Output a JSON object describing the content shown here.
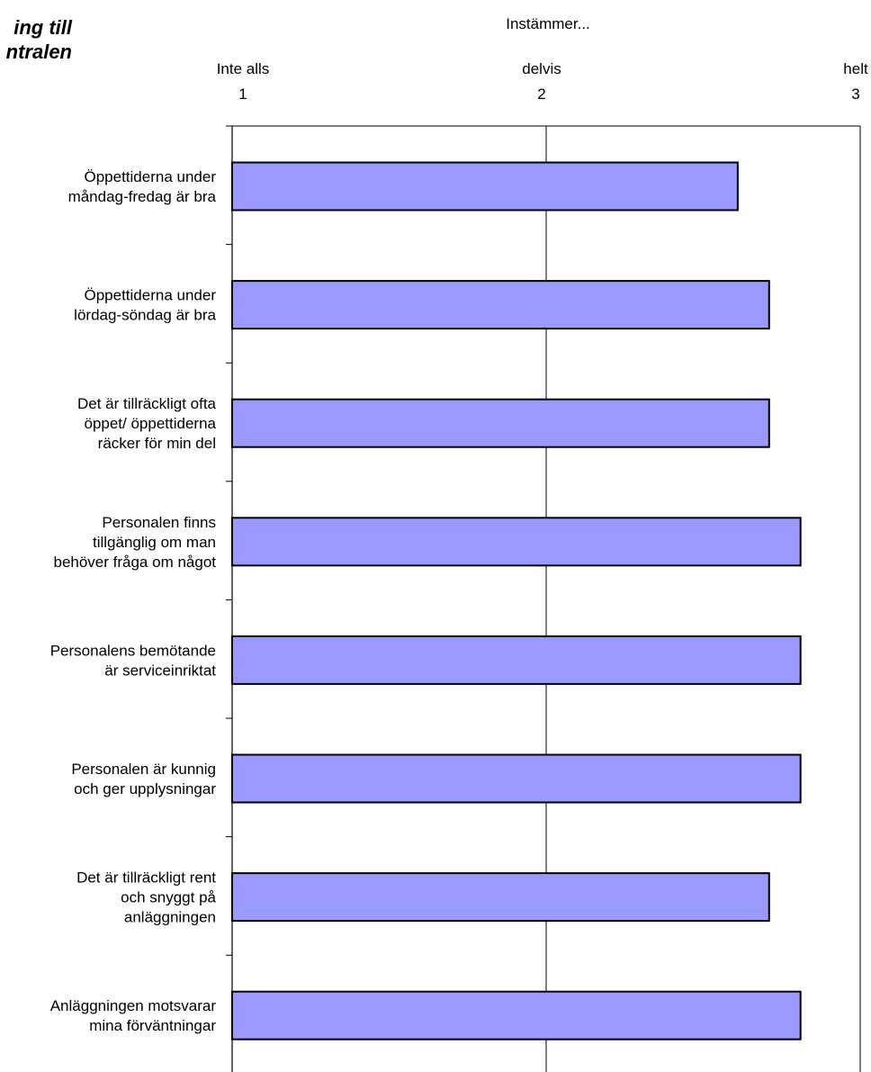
{
  "chart_data": {
    "type": "bar",
    "orientation": "horizontal",
    "title_lines": [
      "ing till",
      "ntralen"
    ],
    "axis_title": "Instämmer...",
    "xlim": [
      1,
      3
    ],
    "x_ticks": [
      {
        "value": 1,
        "label": "Inte alls",
        "number": "1"
      },
      {
        "value": 2,
        "label": "delvis",
        "number": "2"
      },
      {
        "value": 3,
        "label": "helt",
        "number": "3"
      }
    ],
    "grid": {
      "vertical_at": [
        2
      ]
    },
    "bar_color": "#9999FF",
    "bar_border_color": "#000000",
    "categories": [
      {
        "lines": [
          "Öppettiderna under",
          "måndag-fredag är bra"
        ],
        "value": 2.61
      },
      {
        "lines": [
          "Öppettiderna under",
          "lördag-söndag är bra"
        ],
        "value": 2.71
      },
      {
        "lines": [
          "Det är tillräckligt ofta",
          "öppet/ öppettiderna",
          "räcker för min del"
        ],
        "value": 2.71
      },
      {
        "lines": [
          "Personalen finns",
          "tillgänglig om man",
          "behöver fråga om något"
        ],
        "value": 2.81
      },
      {
        "lines": [
          "Personalens bemötande",
          "är serviceinriktat"
        ],
        "value": 2.81
      },
      {
        "lines": [
          "Personalen är kunnig",
          "och ger upplysningar"
        ],
        "value": 2.81
      },
      {
        "lines": [
          "Det är tillräckligt rent",
          "och snyggt på",
          "anläggningen"
        ],
        "value": 2.71
      },
      {
        "lines": [
          "Anläggningen motsvarar",
          "mina förväntningar"
        ],
        "value": 2.81
      }
    ]
  }
}
